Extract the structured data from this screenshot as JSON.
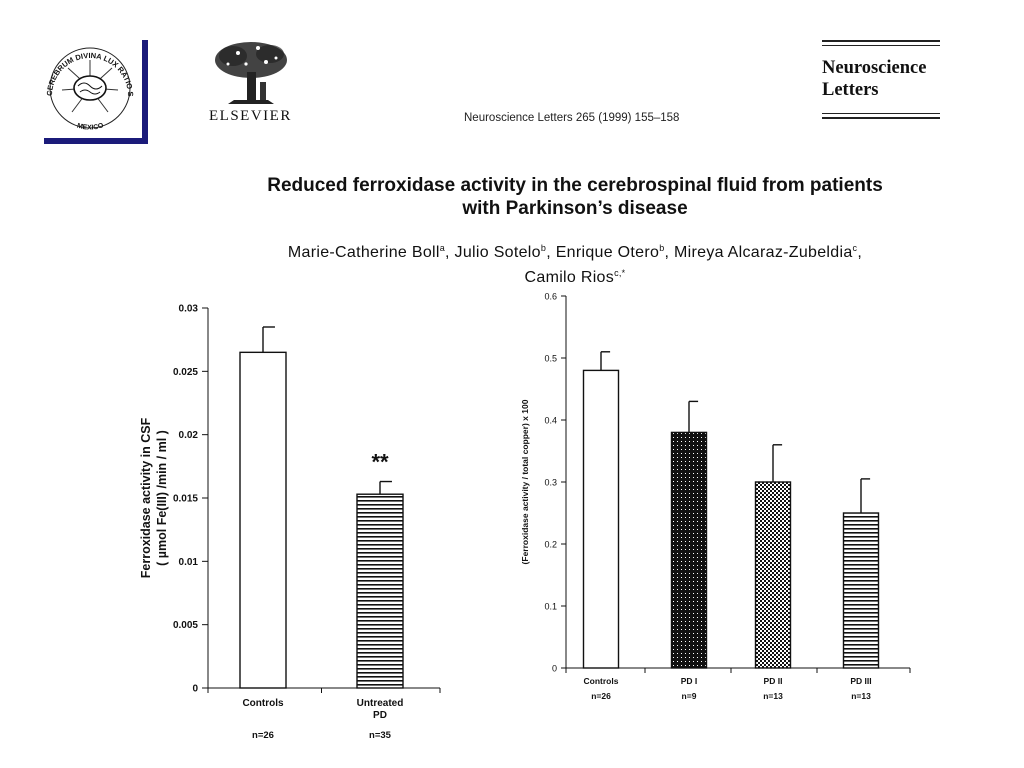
{
  "header": {
    "seal_text": "CEREBRUM DIVINA LUX RATIO SALUS SCIENTIAE",
    "seal_bottom": "MEXICO",
    "publisher": "ELSEVIER",
    "citation": "Neuroscience Letters 265 (1999) 155–158",
    "journal_line1": "Neuroscience",
    "journal_line2": "Letters"
  },
  "paper": {
    "title_line1": "Reduced ferroxidase activity in the cerebrospinal fluid from patients",
    "title_line2": "with Parkinson’s disease",
    "authors": [
      {
        "name": "Marie-Catherine Boll",
        "aff": "a",
        "sep": ", "
      },
      {
        "name": "Julio Sotelo",
        "aff": "b",
        "sep": ", "
      },
      {
        "name": "Enrique Otero",
        "aff": "b",
        "sep": ", "
      },
      {
        "name": "Mireya Alcaraz-Zubeldia",
        "aff": "c",
        "sep": ","
      },
      {
        "name": "Camilo Rios",
        "aff": "c,*",
        "sep": ""
      }
    ]
  },
  "colors": {
    "bar_outline": "#111111",
    "navy": "#1b1b7a"
  },
  "chart_data": [
    {
      "type": "bar",
      "ylabel": "Ferroxidase activity in CSF\n( µmol Fe(III) /min / ml )",
      "ylim": [
        0,
        0.03
      ],
      "yticks": [
        0,
        0.005,
        0.01,
        0.015,
        0.02,
        0.025,
        0.03
      ],
      "ytick_labels": [
        "0",
        "0.005",
        "0.01",
        "0.015",
        "0.02",
        "0.025",
        "0.03"
      ],
      "categories": [
        "Controls",
        "Untreated\nPD"
      ],
      "values": [
        0.0265,
        0.0153
      ],
      "errors": [
        0.002,
        0.001
      ],
      "fills": [
        "open",
        "horizontal-hatch"
      ],
      "n_labels": [
        "n=26",
        "n=35"
      ],
      "annotations": [
        {
          "category": "Untreated\nPD",
          "text": "**"
        }
      ]
    },
    {
      "type": "bar",
      "ylabel": "(Ferroxidase activity  /  total copper) x 100",
      "ylim": [
        0,
        0.6
      ],
      "yticks": [
        0,
        0.1,
        0.2,
        0.3,
        0.4,
        0.5,
        0.6
      ],
      "ytick_labels": [
        "0",
        "0.1",
        "0.2",
        "0.3",
        "0.4",
        "0.5",
        "0.6"
      ],
      "categories": [
        "Controls",
        "PD I",
        "PD II",
        "PD III"
      ],
      "values": [
        0.48,
        0.38,
        0.3,
        0.25
      ],
      "errors": [
        0.03,
        0.05,
        0.06,
        0.055
      ],
      "fills": [
        "open",
        "dense",
        "medium",
        "horizontal-hatch"
      ],
      "n_labels": [
        "n=26",
        "n=9",
        "n=13",
        "n=13"
      ]
    }
  ]
}
